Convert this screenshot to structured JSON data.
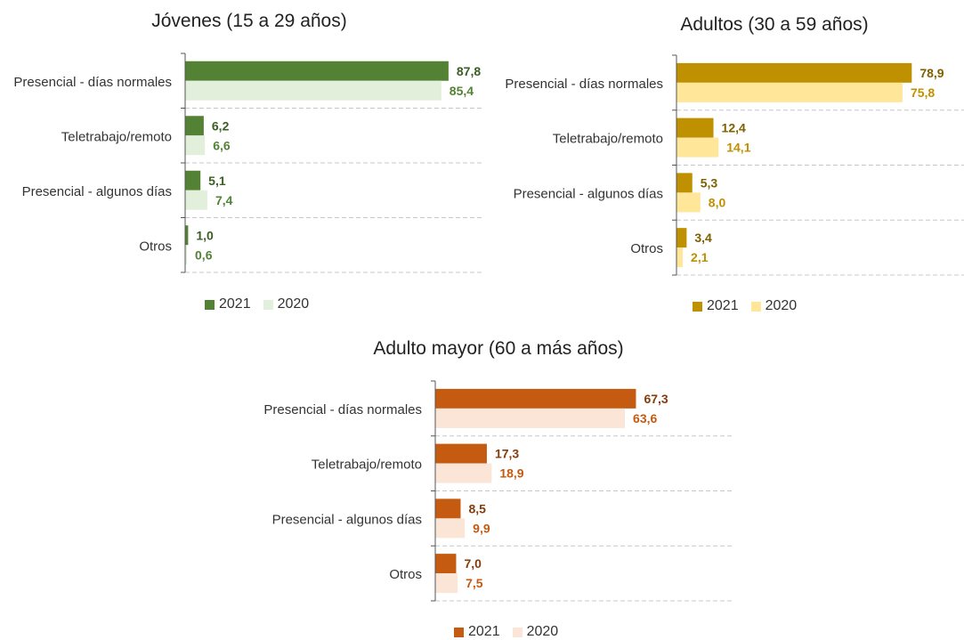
{
  "chart_data": [
    {
      "type": "bar",
      "orientation": "horizontal",
      "title": "Jóvenes (15 a 29 años)",
      "categories": [
        "Presencial - días normales",
        "Teletrabajo/remoto",
        "Presencial - algunos días",
        "Otros"
      ],
      "series": [
        {
          "name": "2021",
          "values": [
            87.8,
            6.2,
            5.1,
            1.0
          ],
          "labels": [
            "87,8",
            "6,2",
            "5,1",
            "1,0"
          ],
          "color": "#548235",
          "label_color": "#3b5e24"
        },
        {
          "name": "2020",
          "values": [
            85.4,
            6.6,
            7.4,
            0.6
          ],
          "labels": [
            "85,4",
            "6,6",
            "7,4",
            "0,6"
          ],
          "color": "#e2efda",
          "label_color": "#548235"
        }
      ],
      "xlim": [
        0,
        100
      ],
      "grid": false,
      "legend": "bottom-left"
    },
    {
      "type": "bar",
      "orientation": "horizontal",
      "title": "Adultos (30 a 59 años)",
      "categories": [
        "Presencial - días normales",
        "Teletrabajo/remoto",
        "Presencial - algunos días",
        "Otros"
      ],
      "series": [
        {
          "name": "2021",
          "values": [
            78.9,
            12.4,
            5.3,
            3.4
          ],
          "labels": [
            "78,9",
            "12,4",
            "5,3",
            "3,4"
          ],
          "color": "#bf9000",
          "label_color": "#7f6000"
        },
        {
          "name": "2020",
          "values": [
            75.8,
            14.1,
            8.0,
            2.1
          ],
          "labels": [
            "75,8",
            "14,1",
            "8,0",
            "2,1"
          ],
          "color": "#ffe699",
          "label_color": "#bf9000"
        }
      ],
      "xlim": [
        0,
        100
      ],
      "grid": false,
      "legend": "bottom-left"
    },
    {
      "type": "bar",
      "orientation": "horizontal",
      "title": "Adulto mayor (60 a más años)",
      "categories": [
        "Presencial - días normales",
        "Teletrabajo/remoto",
        "Presencial - algunos días",
        "Otros"
      ],
      "series": [
        {
          "name": "2021",
          "values": [
            67.3,
            17.3,
            8.5,
            7.0
          ],
          "labels": [
            "67,3",
            "17,3",
            "8,5",
            "7,0"
          ],
          "color": "#c55a11",
          "label_color": "#843c0c"
        },
        {
          "name": "2020",
          "values": [
            63.6,
            18.9,
            9.9,
            7.5
          ],
          "labels": [
            "63,6",
            "18,9",
            "9,9",
            "7,5"
          ],
          "color": "#fbe5d6",
          "label_color": "#c55a11"
        }
      ],
      "xlim": [
        0,
        100
      ],
      "grid": false,
      "legend": "bottom-left"
    }
  ]
}
